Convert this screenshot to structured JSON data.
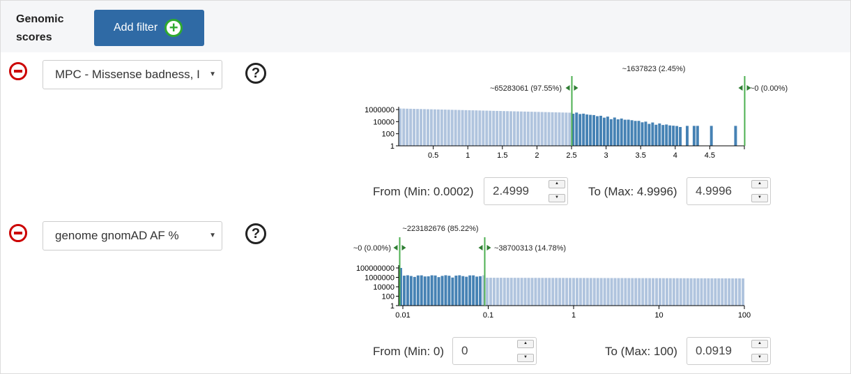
{
  "header": {
    "title_line1": "Genomic",
    "title_line2": "scores",
    "add_filter_label": "Add filter"
  },
  "filters": [
    {
      "score": "MPC - Missense badness, I",
      "from_label": "From (Min: 0.0002)",
      "from_value": "2.4999",
      "to_label": "To (Max: 4.9996)",
      "to_value": "4.9996",
      "chart_data": {
        "type": "bar",
        "scale_y": "log",
        "xlim": [
          0,
          5
        ],
        "x_ticks": [
          0.5,
          1,
          1.5,
          2,
          2.5,
          3,
          3.5,
          4,
          4.5
        ],
        "y_ticks": [
          "1",
          "100",
          "10000",
          "1000000"
        ],
        "selection": [
          2.4999,
          4.9996
        ],
        "annotations": {
          "left": "~65283061 (97.55%)",
          "middle": "~1637823 (2.45%)",
          "right": "~0 (0.00%)"
        },
        "bars": "log-scale histogram, ~1.5e6 near 0 decreasing to ~3e5 at 2.5, ~1e4 at 3.5, sparse ~100-1000 above 4"
      }
    },
    {
      "score": "genome gnomAD AF %",
      "from_label": "From (Min: 0)",
      "from_value": "0",
      "to_label": "To (Max: 100)",
      "to_value": "0.0919",
      "chart_data": {
        "type": "bar",
        "scale_x": "log",
        "scale_y": "log",
        "xlim": [
          0.01,
          100
        ],
        "x_ticks": [
          "0.01",
          "0.1",
          "1",
          "10",
          "100"
        ],
        "y_ticks": [
          "1",
          "100",
          "10000",
          "1000000",
          "100000000"
        ],
        "selection": [
          0,
          0.0919
        ],
        "annotations": {
          "left": "~0 (0.00%)",
          "middle": "~223182676 (85.22%)",
          "right": "~38700313 (14.78%)"
        },
        "bars": "first bar ~1e8, then ~2e6 to ~8e5 across the range"
      }
    }
  ],
  "colors": {
    "bar_selected": "#4682b4",
    "bar_unselected": "#b0c4de",
    "marker": "#4caf50",
    "button": "#2f6aa5"
  }
}
